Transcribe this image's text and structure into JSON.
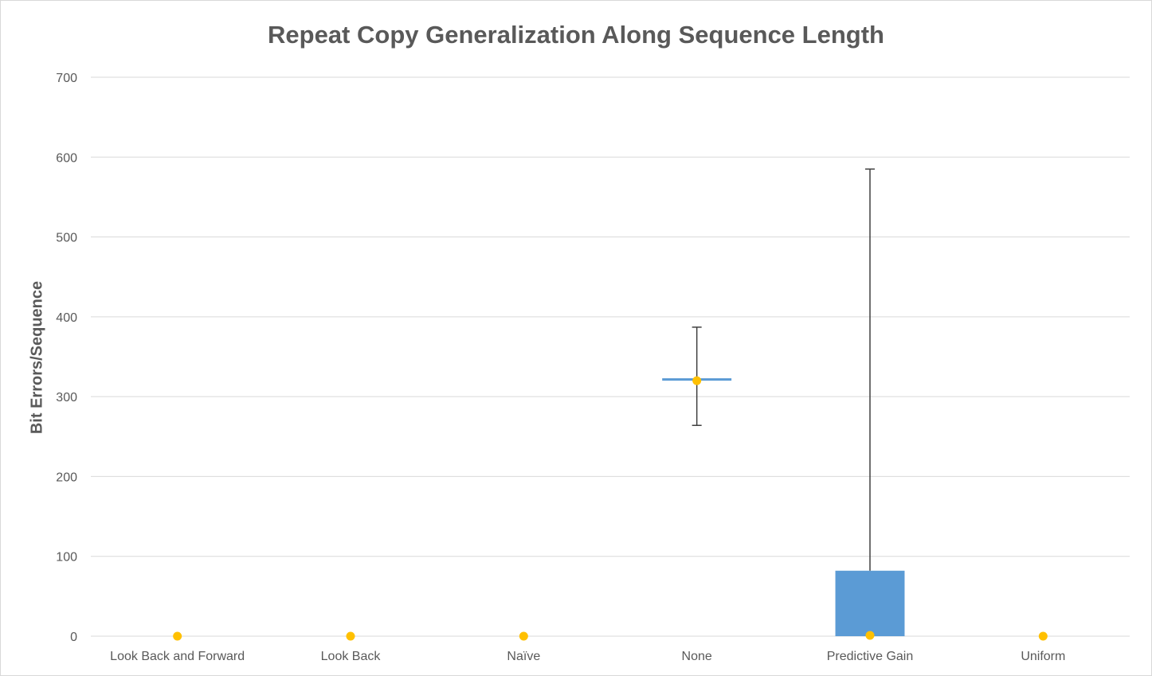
{
  "chart_data": {
    "type": "bar",
    "title": "Repeat Copy Generalization Along Sequence Length",
    "xlabel": "",
    "ylabel": "Bit Errors/Sequence",
    "ylim": [
      0,
      700
    ],
    "yticks": [
      0,
      100,
      200,
      300,
      400,
      500,
      600,
      700
    ],
    "grid": true,
    "categories": [
      "Look Back and Forward",
      "Look Back",
      "Naïve",
      "None",
      "Predictive Gain",
      "Uniform"
    ],
    "series": [
      {
        "type": "floating-bar",
        "low": [
          0,
          0,
          0,
          320,
          0,
          0
        ],
        "high": [
          0,
          0,
          0,
          323,
          82,
          0
        ],
        "error_low": [
          0,
          0,
          0,
          264,
          0,
          0
        ],
        "error_high": [
          0,
          0,
          0,
          387,
          585,
          0
        ]
      },
      {
        "type": "scatter",
        "values": [
          0,
          0,
          0,
          320,
          1,
          0
        ]
      }
    ],
    "colors": {
      "bar": "#5b9bd5",
      "marker": "#ffc000",
      "grid": "#d9d9d9",
      "error": "#404040"
    }
  }
}
